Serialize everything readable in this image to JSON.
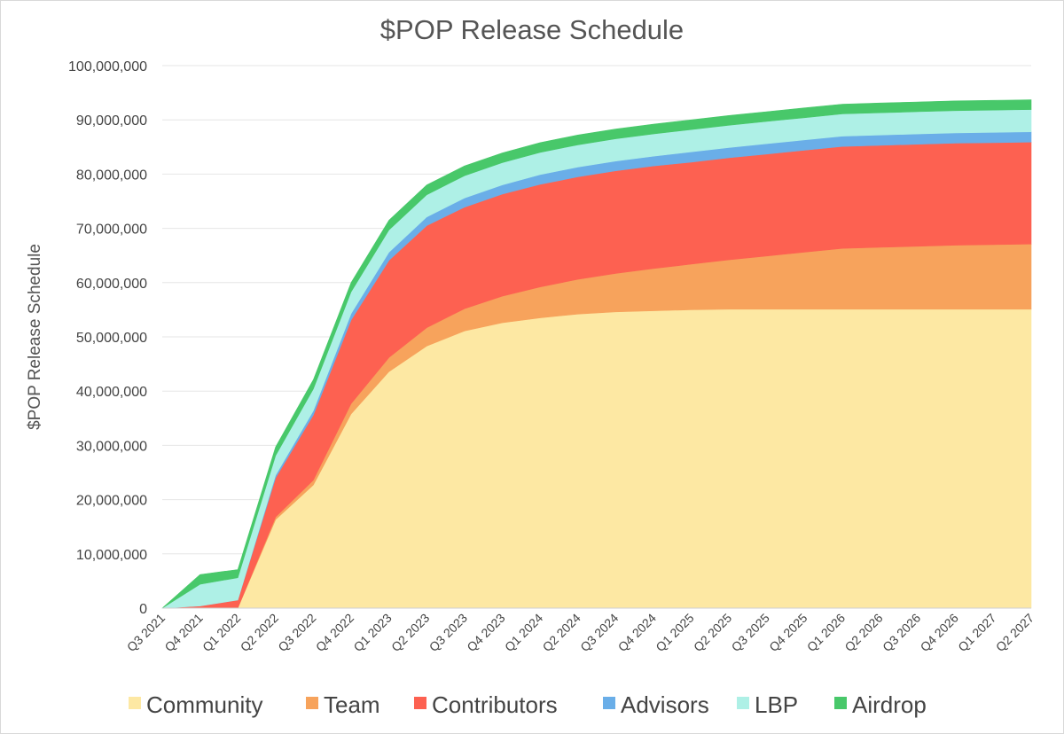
{
  "chart_data": {
    "type": "area",
    "stacked": true,
    "title": "$POP Release Schedule",
    "xlabel": "",
    "ylabel": "$POP Release Schedule",
    "ylim": [
      0,
      100000000
    ],
    "yticks": [
      0,
      10000000,
      20000000,
      30000000,
      40000000,
      50000000,
      60000000,
      70000000,
      80000000,
      90000000,
      100000000
    ],
    "ytick_labels": [
      "0",
      "10,000,000",
      "20,000,000",
      "30,000,000",
      "40,000,000",
      "50,000,000",
      "60,000,000",
      "70,000,000",
      "80,000,000",
      "90,000,000",
      "100,000,000"
    ],
    "categories": [
      "Q3 2021",
      "Q4 2021",
      "Q1 2022",
      "Q2 2022",
      "Q3 2022",
      "Q4 2022",
      "Q1 2023",
      "Q2 2023",
      "Q3 2023",
      "Q4 2023",
      "Q1 2024",
      "Q2 2024",
      "Q3 2024",
      "Q4 2024",
      "Q1 2025",
      "Q2 2025",
      "Q3 2025",
      "Q4 2025",
      "Q1 2026",
      "Q2 2026",
      "Q3 2026",
      "Q4 2026",
      "Q1 2027",
      "Q2 2027"
    ],
    "legend_position": "bottom",
    "grid": true,
    "series": [
      {
        "name": "Community",
        "color": "#fde8a3",
        "values": [
          0,
          0,
          0,
          16300000,
          22700000,
          35800000,
          43600000,
          48300000,
          51100000,
          52600000,
          53500000,
          54200000,
          54600000,
          54800000,
          55000000,
          55100000,
          55100000,
          55100000,
          55100000,
          55100000,
          55100000,
          55100000,
          55100000,
          55100000
        ]
      },
      {
        "name": "Team",
        "color": "#f7a35c",
        "values": [
          0,
          0,
          0,
          500000,
          900000,
          1900000,
          2600000,
          3400000,
          4100000,
          4900000,
          5700000,
          6400000,
          7100000,
          7800000,
          8400000,
          9100000,
          9800000,
          10500000,
          11200000,
          11400000,
          11600000,
          11800000,
          11900000,
          12000000
        ]
      },
      {
        "name": "Contributors",
        "color": "#fd6151",
        "values": [
          0,
          400000,
          1500000,
          7200000,
          12000000,
          15400000,
          17900000,
          18800000,
          18700000,
          18800000,
          18900000,
          18900000,
          18900000,
          18900000,
          18800000,
          18800000,
          18800000,
          18800000,
          18800000,
          18800000,
          18800000,
          18800000,
          18800000,
          18800000
        ]
      },
      {
        "name": "Advisors",
        "color": "#6aaee8",
        "values": [
          0,
          0,
          0,
          500000,
          800000,
          1200000,
          1500000,
          1600000,
          1700000,
          1700000,
          1800000,
          1800000,
          1800000,
          1800000,
          1900000,
          1900000,
          1900000,
          1900000,
          1900000,
          1900000,
          1900000,
          1900000,
          1900000,
          1900000
        ]
      },
      {
        "name": "LBP",
        "color": "#aef0e6",
        "values": [
          0,
          4000000,
          4100000,
          3600000,
          4000000,
          4000000,
          4100000,
          4100000,
          4100000,
          4100000,
          4100000,
          4100000,
          4100000,
          4100000,
          4100000,
          4100000,
          4100000,
          4100000,
          4100000,
          4100000,
          4100000,
          4100000,
          4100000,
          4100000
        ]
      },
      {
        "name": "Airdrop",
        "color": "#48c86a",
        "values": [
          0,
          1800000,
          1500000,
          1600000,
          1700000,
          1700000,
          1800000,
          1800000,
          1800000,
          1800000,
          1800000,
          1800000,
          1800000,
          1800000,
          1800000,
          1800000,
          1800000,
          1800000,
          1800000,
          1800000,
          1800000,
          1800000,
          1800000,
          1800000
        ]
      }
    ]
  }
}
